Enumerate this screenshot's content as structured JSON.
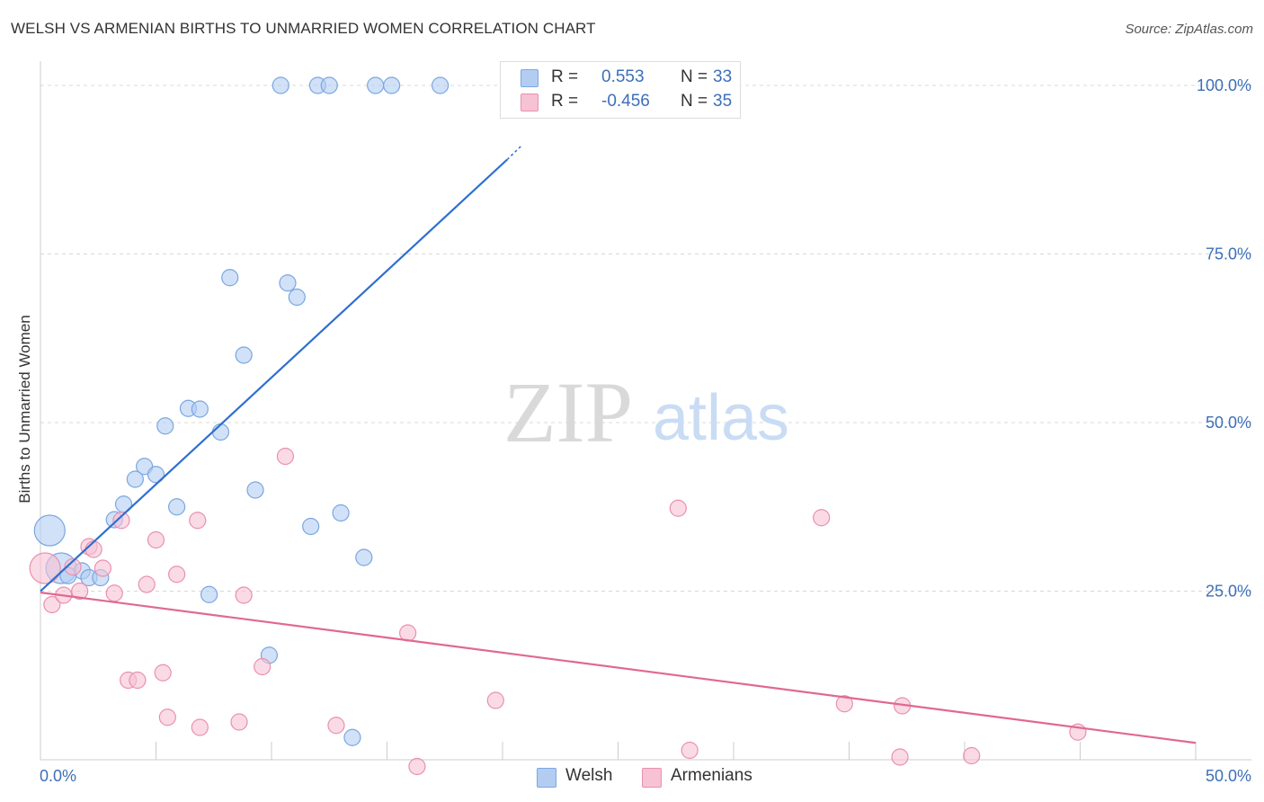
{
  "header": {
    "title": "WELSH VS ARMENIAN BIRTHS TO UNMARRIED WOMEN CORRELATION CHART",
    "source": "Source: ZipAtlas.com"
  },
  "watermark": {
    "zip": "ZIP",
    "atlas": "atlas"
  },
  "legend": {
    "welsh": {
      "r_label": "R =",
      "r_value": "0.553",
      "n_label": "N =",
      "n_value": "33"
    },
    "armenians": {
      "r_label": "R =",
      "r_value": "-0.456",
      "n_label": "N =",
      "n_value": "35"
    }
  },
  "colors": {
    "welsh_fill": "#b3cdf2",
    "welsh_stroke": "#7aa6e0",
    "welsh_line": "#2e6fd0",
    "armenians_fill": "#f7c2d3",
    "armenians_stroke": "#e990ae",
    "armenians_line": "#e0698f",
    "tick_label": "#3d6fb8",
    "grid": "#d8d8d8"
  },
  "chart_data": {
    "type": "scatter",
    "title": "WELSH VS ARMENIAN BIRTHS TO UNMARRIED WOMEN CORRELATION CHART",
    "xlabel": "",
    "ylabel": "Births to Unmarried Women",
    "xlim": [
      0,
      50
    ],
    "ylim": [
      0,
      102
    ],
    "x_tick_labels": [
      "0.0%",
      "50.0%"
    ],
    "y_ticks": [
      25,
      50,
      75,
      100
    ],
    "y_tick_labels": [
      "25.0%",
      "50.0%",
      "75.0%",
      "100.0%"
    ],
    "grid": "horizontal dashed",
    "legend_position": "top-center",
    "series": [
      {
        "name": "Welsh",
        "points": [
          {
            "x": 10.4,
            "y": 100
          },
          {
            "x": 12.0,
            "y": 100
          },
          {
            "x": 12.5,
            "y": 100
          },
          {
            "x": 14.5,
            "y": 100
          },
          {
            "x": 15.2,
            "y": 100
          },
          {
            "x": 17.3,
            "y": 100
          },
          {
            "x": 8.2,
            "y": 71.5
          },
          {
            "x": 10.7,
            "y": 70.7
          },
          {
            "x": 11.1,
            "y": 68.6
          },
          {
            "x": 8.8,
            "y": 60.0
          },
          {
            "x": 6.4,
            "y": 52.1
          },
          {
            "x": 6.9,
            "y": 52.0
          },
          {
            "x": 5.4,
            "y": 49.5
          },
          {
            "x": 7.8,
            "y": 48.6
          },
          {
            "x": 4.5,
            "y": 43.5
          },
          {
            "x": 4.1,
            "y": 41.6
          },
          {
            "x": 5.0,
            "y": 42.3
          },
          {
            "x": 9.3,
            "y": 40.0
          },
          {
            "x": 3.6,
            "y": 37.9
          },
          {
            "x": 5.9,
            "y": 37.5
          },
          {
            "x": 3.2,
            "y": 35.6
          },
          {
            "x": 13.0,
            "y": 36.6
          },
          {
            "x": 11.7,
            "y": 34.6
          },
          {
            "x": 14.0,
            "y": 30.0
          },
          {
            "x": 0.4,
            "y": 34.0,
            "size": "large"
          },
          {
            "x": 0.9,
            "y": 28.4,
            "size": "large"
          },
          {
            "x": 1.8,
            "y": 28.0
          },
          {
            "x": 2.1,
            "y": 27.0
          },
          {
            "x": 2.6,
            "y": 27.0
          },
          {
            "x": 7.3,
            "y": 24.5
          },
          {
            "x": 9.9,
            "y": 15.5
          },
          {
            "x": 13.5,
            "y": 3.3
          },
          {
            "x": 1.2,
            "y": 27.3
          }
        ]
      },
      {
        "name": "Armenians",
        "points": [
          {
            "x": 0.2,
            "y": 28.4,
            "size": "large"
          },
          {
            "x": 0.5,
            "y": 23.0
          },
          {
            "x": 1.0,
            "y": 24.4
          },
          {
            "x": 1.4,
            "y": 28.6
          },
          {
            "x": 1.7,
            "y": 25.0
          },
          {
            "x": 2.1,
            "y": 31.6
          },
          {
            "x": 2.3,
            "y": 31.2
          },
          {
            "x": 2.7,
            "y": 28.4
          },
          {
            "x": 3.2,
            "y": 24.7
          },
          {
            "x": 3.5,
            "y": 35.5
          },
          {
            "x": 3.8,
            "y": 11.8
          },
          {
            "x": 4.2,
            "y": 11.8
          },
          {
            "x": 4.6,
            "y": 26.0
          },
          {
            "x": 5.0,
            "y": 32.6
          },
          {
            "x": 5.3,
            "y": 12.9
          },
          {
            "x": 5.5,
            "y": 6.3
          },
          {
            "x": 5.9,
            "y": 27.5
          },
          {
            "x": 6.9,
            "y": 4.8
          },
          {
            "x": 6.8,
            "y": 35.5
          },
          {
            "x": 8.6,
            "y": 5.6
          },
          {
            "x": 8.8,
            "y": 24.4
          },
          {
            "x": 9.6,
            "y": 13.8
          },
          {
            "x": 10.6,
            "y": 45.0
          },
          {
            "x": 12.8,
            "y": 5.1
          },
          {
            "x": 15.9,
            "y": 18.8
          },
          {
            "x": 16.3,
            "y": -1.0
          },
          {
            "x": 19.7,
            "y": 8.8
          },
          {
            "x": 27.6,
            "y": 37.3
          },
          {
            "x": 28.1,
            "y": 1.4
          },
          {
            "x": 33.8,
            "y": 35.9
          },
          {
            "x": 34.8,
            "y": 8.3
          },
          {
            "x": 37.2,
            "y": 0.4
          },
          {
            "x": 37.3,
            "y": 8.0
          },
          {
            "x": 40.3,
            "y": 0.6
          },
          {
            "x": 44.9,
            "y": 4.1
          }
        ]
      }
    ],
    "trendlines": [
      {
        "series": "Welsh",
        "from": {
          "x": 0,
          "y": 25.0
        },
        "to": {
          "x": 20.2,
          "y": 89.0
        },
        "dashed_to": {
          "x": 20.8,
          "y": 91.0
        }
      },
      {
        "series": "Armenians",
        "from": {
          "x": 0,
          "y": 24.8
        },
        "to": {
          "x": 50,
          "y": 2.5
        }
      }
    ]
  },
  "bottom_legend": [
    {
      "key": "welsh",
      "label": "Welsh"
    },
    {
      "key": "armenians",
      "label": "Armenians"
    }
  ]
}
